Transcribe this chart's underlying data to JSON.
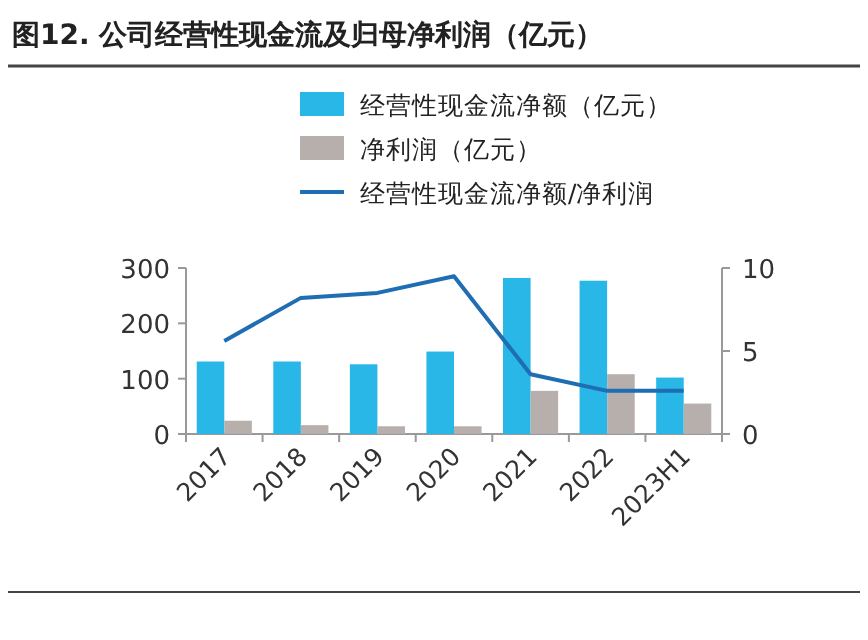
{
  "chart_data": {
    "type": "bar",
    "title": "图12. 公司经营性现金流及归母净利润（亿元）",
    "categories": [
      "2017",
      "2018",
      "2019",
      "2020",
      "2021",
      "2022",
      "2023H1"
    ],
    "series": [
      {
        "name": "经营性现金流净额（亿元）",
        "color": "#29b7e8",
        "values": [
          131,
          131,
          126,
          149,
          282,
          277,
          102
        ]
      },
      {
        "name": "净利润（亿元）",
        "color": "#b7afac",
        "values": [
          24,
          16,
          14,
          14,
          78,
          108,
          55
        ]
      },
      {
        "name": "经营性现金流净额/净利润",
        "type": "line",
        "axis": "y2",
        "color": "#1f6db3",
        "values": [
          5.6,
          8.2,
          8.5,
          9.5,
          3.6,
          2.6,
          2.6
        ]
      }
    ],
    "ylim": [
      0,
      300
    ],
    "yticks": [
      0,
      100,
      200,
      300
    ],
    "y2lim": [
      0,
      10
    ],
    "y2ticks": [
      0,
      5,
      10
    ],
    "legend": "top",
    "grid": false,
    "marker": "none",
    "line_style": "solid"
  }
}
